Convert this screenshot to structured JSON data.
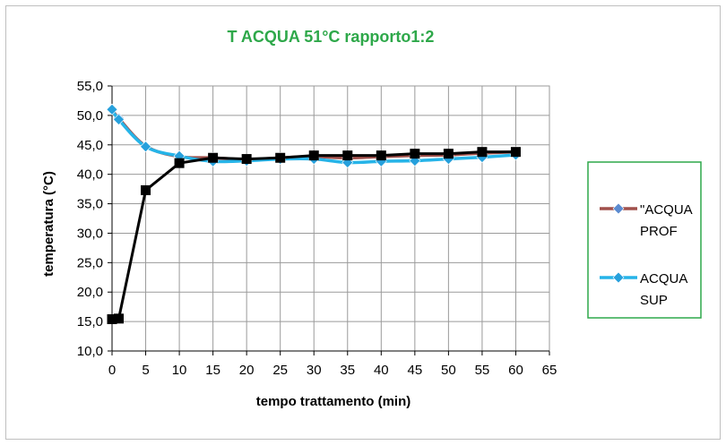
{
  "colors": {
    "title": "#2ea84a",
    "legend_border": "#2ea84a",
    "grid": "#9a9a9a",
    "axis": "#000000"
  },
  "chart_data": {
    "type": "line",
    "title": "T ACQUA 51°C  rapporto1:2",
    "xlabel": "tempo trattamento (min)",
    "ylabel": "temperatura (°C)",
    "xlim": [
      0,
      65
    ],
    "ylim": [
      10,
      55
    ],
    "x_ticks": [
      "0",
      "5",
      "10",
      "15",
      "20",
      "25",
      "30",
      "35",
      "40",
      "45",
      "50",
      "55",
      "60",
      "65"
    ],
    "y_ticks": [
      "10,0",
      "15,0",
      "20,0",
      "25,0",
      "30,0",
      "35,0",
      "40,0",
      "45,0",
      "50,0",
      "55,0"
    ],
    "grid": true,
    "legend_position": "right",
    "series": [
      {
        "name": "\"ACQUA PROF",
        "legend_label_lines": [
          "\"ACQUA",
          "PROF"
        ],
        "color": "#a0504b",
        "marker_color": "#5b8bd0",
        "marker": "diamond",
        "legend": true,
        "x": [
          0,
          1,
          5,
          10,
          15,
          20,
          25,
          30,
          35,
          40,
          45,
          50,
          55,
          60
        ],
        "y": [
          51.0,
          49.5,
          44.8,
          43.0,
          42.8,
          42.5,
          42.8,
          43.0,
          42.8,
          43.0,
          43.2,
          43.3,
          43.6,
          43.8
        ]
      },
      {
        "name": "ACQUA SUP",
        "legend_label_lines": [
          "ACQUA",
          "SUP"
        ],
        "color": "#26b4e8",
        "marker_color": "#26a0dc",
        "marker": "diamond",
        "legend": true,
        "x": [
          0,
          1,
          5,
          10,
          15,
          20,
          25,
          30,
          35,
          40,
          45,
          50,
          55,
          60
        ],
        "y": [
          51.0,
          49.3,
          44.7,
          43.1,
          42.2,
          42.3,
          42.6,
          42.6,
          42.0,
          42.2,
          42.3,
          42.6,
          42.9,
          43.3
        ]
      },
      {
        "name": "",
        "color": "#000000",
        "marker_color": "#000000",
        "marker": "square",
        "legend": false,
        "x": [
          0,
          1,
          5,
          10,
          15,
          20,
          25,
          30,
          35,
          40,
          45,
          50,
          55,
          60
        ],
        "y": [
          15.4,
          15.5,
          37.3,
          41.9,
          42.8,
          42.6,
          42.8,
          43.2,
          43.2,
          43.2,
          43.5,
          43.5,
          43.8,
          43.8
        ]
      }
    ]
  }
}
